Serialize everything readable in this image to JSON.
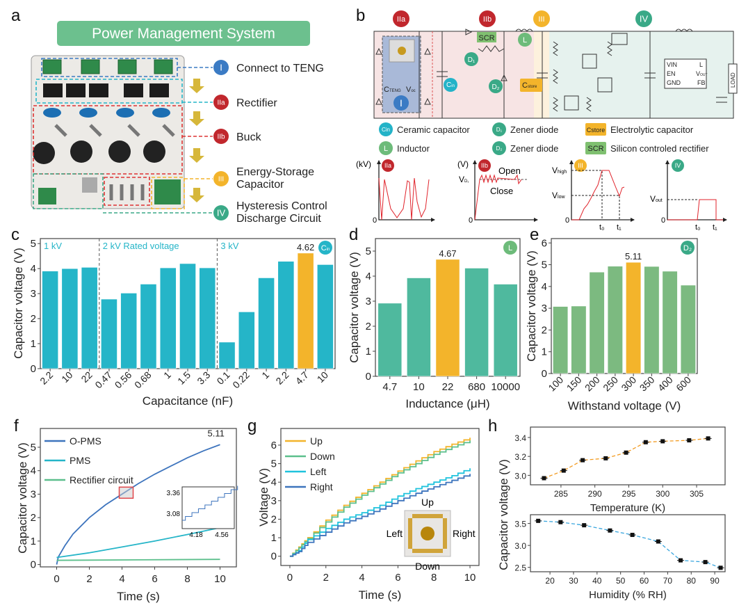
{
  "panel_labels": {
    "a": "a",
    "b": "b",
    "c": "c",
    "d": "d",
    "e": "e",
    "f": "f",
    "g": "g",
    "h": "h"
  },
  "panel_a": {
    "title": "Power Management System",
    "stages": [
      {
        "badge": "I",
        "lines": [
          "Connect to TENG"
        ],
        "color": "#3b7bc4"
      },
      {
        "badge": "IIa",
        "lines": [
          "Rectifier"
        ],
        "color": "#c1272d"
      },
      {
        "badge": "IIb",
        "lines": [
          "Buck"
        ],
        "color": "#c1272d"
      },
      {
        "badge": "III",
        "lines": [
          "Energy-Storage",
          "Capacitor"
        ],
        "color": "#f3b42b"
      },
      {
        "badge": "IV",
        "lines": [
          "Hysteresis Control",
          "Discharge Circuit"
        ],
        "color": "#3aa987"
      }
    ]
  },
  "panel_b": {
    "stage_badges": [
      {
        "text": "IIa",
        "color": "#c1272d"
      },
      {
        "text": "IIb",
        "color": "#c1272d"
      },
      {
        "text": "III",
        "color": "#f3b42b"
      },
      {
        "text": "IV",
        "color": "#3aa987"
      }
    ],
    "components": {
      "scr": "SCR",
      "d1": "D₁",
      "d2": "D₂",
      "l": "L",
      "cin_main": "C",
      "cin_sub": "in",
      "cstore_main": "C",
      "cstore_sub": "store",
      "cteng_main": "C",
      "cteng_sub": "TENG",
      "voc_main": "V",
      "voc_sub": "oc",
      "teng_badge": "I",
      "ic_vin": "VIN",
      "ic_en": "EN",
      "ic_gnd": "GND",
      "ic_l": "L",
      "ic_vout_main": "V",
      "ic_vout_sub": "OUT",
      "ic_fb": "FB",
      "load": "LOAD"
    },
    "legend": [
      {
        "badge": "Cin",
        "label": "Ceramic capacitor",
        "color": "#24b3c8"
      },
      {
        "badge": "D₁",
        "label": "Zener diode",
        "color": "#3aa987"
      },
      {
        "badge": "Cstore",
        "label": "Electrolytic capacitor",
        "color": "#f3b42b"
      },
      {
        "badge": "L",
        "label": "Inductor",
        "color": "#6dbb7a"
      },
      {
        "badge": "D₂",
        "label": "Zener diode",
        "color": "#3aa987"
      },
      {
        "badge": "SCR",
        "label": "Silicon controled rectifier",
        "color": "#7fc070"
      }
    ],
    "mini_graphs": {
      "iia": {
        "badge": "IIa",
        "unit": "(kV)",
        "zero": "0"
      },
      "iib": {
        "badge": "IIb",
        "unit": "(V)",
        "zero": "0",
        "vd": "V",
        "vd_sub": "D₁",
        "open": "Open",
        "close": "Close"
      },
      "iii": {
        "badge": "III",
        "zero": "0",
        "vhigh": "V",
        "vhigh_sub": "high",
        "vlow": "V",
        "vlow_sub": "low",
        "t0": "t₀",
        "t1": "t₁"
      },
      "iv": {
        "badge": "IV",
        "zero": "0",
        "vout": "V",
        "vout_sub": "out",
        "t0": "t₀",
        "t1": "t₁"
      }
    }
  },
  "chart_data": [
    {
      "id": "c",
      "type": "bar",
      "xlabel": "Capacitance (nF)",
      "ylabel": "Capacitor voltage (V)",
      "ylim": [
        0,
        5.2
      ],
      "yticks": [
        "0",
        "1",
        "2",
        "3",
        "4",
        "5"
      ],
      "categories": [
        "2.2",
        "10",
        "22",
        "0.47",
        "0.56",
        "0.68",
        "1",
        "1.5",
        "3.3",
        "0.1",
        "0.22",
        "1",
        "2.2",
        "4.7",
        "10"
      ],
      "values": [
        3.9,
        4.0,
        4.05,
        2.78,
        3.02,
        3.38,
        4.03,
        4.2,
        4.03,
        1.06,
        2.27,
        3.63,
        4.29,
        4.62,
        4.16
      ],
      "highlight_index": 13,
      "highlight_label": "4.62",
      "groups": [
        "1 kV",
        "2 kV Rated voltage",
        "3 kV"
      ],
      "badge": {
        "main": "C",
        "sub": "in"
      },
      "colors": {
        "bar": "#25b5c8",
        "highlight": "#f3b42b",
        "group_text": "#25b5c8"
      }
    },
    {
      "id": "d",
      "type": "bar",
      "xlabel": "Inductance (μH)",
      "ylabel": "Capacitor voltage (V)",
      "ylim": [
        0,
        5.5
      ],
      "yticks": [
        "0",
        "1",
        "2",
        "3",
        "4",
        "5"
      ],
      "categories": [
        "4.7",
        "10",
        "22",
        "680",
        "10000"
      ],
      "values": [
        2.92,
        3.93,
        4.67,
        4.32,
        3.68
      ],
      "highlight_index": 2,
      "highlight_label": "4.67",
      "badge": {
        "main": "L",
        "sub": ""
      },
      "colors": {
        "bar": "#4fb99e",
        "highlight": "#f3b42b",
        "badge": "#6dbb7a"
      }
    },
    {
      "id": "e",
      "type": "bar",
      "xlabel": "Withstand voltage (V)",
      "ylabel": "Capacitor voltage (V)",
      "ylim": [
        0,
        6.2
      ],
      "yticks": [
        "0",
        "1",
        "2",
        "3",
        "4",
        "5",
        "6"
      ],
      "categories": [
        "100",
        "150",
        "200",
        "250",
        "300",
        "350",
        "400",
        "600"
      ],
      "values": [
        3.08,
        3.1,
        4.66,
        4.93,
        5.11,
        4.92,
        4.7,
        4.06
      ],
      "highlight_index": 4,
      "highlight_label": "5.11",
      "badge": {
        "main": "D₂",
        "sub": ""
      },
      "colors": {
        "bar": "#7cba80",
        "highlight": "#f3b42b",
        "badge": "#3aa987"
      }
    },
    {
      "id": "f",
      "type": "line",
      "xlabel": "Time (s)",
      "ylabel": "Capacitor voltage (V)",
      "xlim": [
        -1,
        11
      ],
      "ylim": [
        -0.1,
        5.8
      ],
      "xticks": [
        "0",
        "2",
        "4",
        "6",
        "8",
        "10"
      ],
      "yticks": [
        "0",
        "1",
        "2",
        "3",
        "4",
        "5"
      ],
      "end_label": "5.11",
      "series": [
        {
          "name": "O-PMS",
          "color": "#3d74bd",
          "points": [
            [
              0,
              0
            ],
            [
              0.1,
              0.32
            ],
            [
              0.5,
              0.8
            ],
            [
              1,
              1.3
            ],
            [
              2,
              2.0
            ],
            [
              3,
              2.55
            ],
            [
              4,
              3.0
            ],
            [
              5,
              3.45
            ],
            [
              6,
              3.85
            ],
            [
              7,
              4.2
            ],
            [
              8,
              4.55
            ],
            [
              9,
              4.85
            ],
            [
              10,
              5.11
            ]
          ]
        },
        {
          "name": "PMS",
          "color": "#25b5c8",
          "points": [
            [
              0,
              0.3
            ],
            [
              2,
              0.5
            ],
            [
              4,
              0.75
            ],
            [
              6,
              1.0
            ],
            [
              8,
              1.28
            ],
            [
              10,
              1.57
            ]
          ]
        },
        {
          "name": "Rectifier circuit",
          "color": "#5cbf8c",
          "points": [
            [
              0,
              0.18
            ],
            [
              5,
              0.2
            ],
            [
              10,
              0.22
            ]
          ]
        }
      ],
      "inset": {
        "xticks": [
          "4.18",
          "4.56"
        ],
        "yticks": [
          "3.08",
          "3.36"
        ]
      }
    },
    {
      "id": "g",
      "type": "line",
      "xlabel": "Time (s)",
      "ylabel": "Voltage (V)",
      "xlim": [
        -0.5,
        10.5
      ],
      "ylim": [
        -0.5,
        6.9
      ],
      "xticks": [
        "0",
        "2",
        "4",
        "6",
        "8",
        "10"
      ],
      "yticks": [
        "0",
        "1",
        "2",
        "3",
        "4",
        "5",
        "6"
      ],
      "series": [
        {
          "name": "Up",
          "color": "#f3b42b",
          "points": [
            [
              0,
              0
            ],
            [
              0.5,
              0.5
            ],
            [
              1,
              1.0
            ],
            [
              2,
              1.95
            ],
            [
              3,
              2.75
            ],
            [
              4,
              3.4
            ],
            [
              5,
              4.0
            ],
            [
              6,
              4.6
            ],
            [
              7,
              5.15
            ],
            [
              8,
              5.65
            ],
            [
              9,
              6.05
            ],
            [
              10,
              6.4
            ]
          ]
        },
        {
          "name": "Down",
          "color": "#5cbf8c",
          "points": [
            [
              0,
              0
            ],
            [
              0.5,
              0.45
            ],
            [
              1,
              0.95
            ],
            [
              2,
              1.85
            ],
            [
              3,
              2.65
            ],
            [
              4,
              3.3
            ],
            [
              5,
              3.9
            ],
            [
              6,
              4.5
            ],
            [
              7,
              5.0
            ],
            [
              8,
              5.5
            ],
            [
              9,
              5.9
            ],
            [
              10,
              6.25
            ]
          ]
        },
        {
          "name": "Left",
          "color": "#1fc3dd",
          "points": [
            [
              0,
              0
            ],
            [
              0.5,
              0.3
            ],
            [
              1,
              0.9
            ],
            [
              2,
              1.5
            ],
            [
              3,
              2.0
            ],
            [
              4,
              2.35
            ],
            [
              5,
              2.75
            ],
            [
              6,
              3.25
            ],
            [
              7,
              3.65
            ],
            [
              8,
              4.0
            ],
            [
              9,
              4.35
            ],
            [
              10,
              4.75
            ]
          ]
        },
        {
          "name": "Right",
          "color": "#3d74bd",
          "points": [
            [
              0,
              0
            ],
            [
              0.5,
              0.25
            ],
            [
              1,
              0.75
            ],
            [
              2,
              1.3
            ],
            [
              3,
              1.8
            ],
            [
              4,
              2.15
            ],
            [
              5,
              2.55
            ],
            [
              6,
              3.0
            ],
            [
              7,
              3.4
            ],
            [
              8,
              3.75
            ],
            [
              9,
              4.1
            ],
            [
              10,
              4.45
            ]
          ]
        }
      ],
      "inset_labels": {
        "up": "Up",
        "down": "Down",
        "left": "Left",
        "right": "Right"
      }
    },
    {
      "id": "h1",
      "type": "scatter",
      "xlabel": "Temperature (K)",
      "ylabel": "Capacitor voltage (V)",
      "xlim": [
        280.5,
        309.2
      ],
      "ylim": [
        2.9,
        3.51
      ],
      "xticks": [
        "285",
        "290",
        "295",
        "300",
        "305"
      ],
      "yticks": [
        "3.0",
        "3.2",
        "3.4"
      ],
      "color": "#f29a1f",
      "x": [
        282.5,
        285.4,
        288.2,
        291.6,
        294.6,
        297.5,
        300.0,
        303.9,
        306.7
      ],
      "y": [
        2.97,
        3.05,
        3.16,
        3.18,
        3.24,
        3.35,
        3.36,
        3.37,
        3.39
      ]
    },
    {
      "id": "h2",
      "type": "scatter",
      "xlabel": "Humidity (% RH)",
      "ylabel": "",
      "xlim": [
        11.7,
        94.4
      ],
      "ylim": [
        2.4,
        3.7
      ],
      "xticks": [
        "20",
        "30",
        "40",
        "50",
        "60",
        "70",
        "80",
        "90"
      ],
      "yticks": [
        "2.5",
        "3.0",
        "3.5"
      ],
      "color": "#3aa6de",
      "x": [
        15,
        24.5,
        34.5,
        45.5,
        55,
        66,
        75.5,
        86,
        92.5
      ],
      "y": [
        3.56,
        3.53,
        3.46,
        3.34,
        3.24,
        3.09,
        2.66,
        2.62,
        2.49
      ]
    }
  ]
}
